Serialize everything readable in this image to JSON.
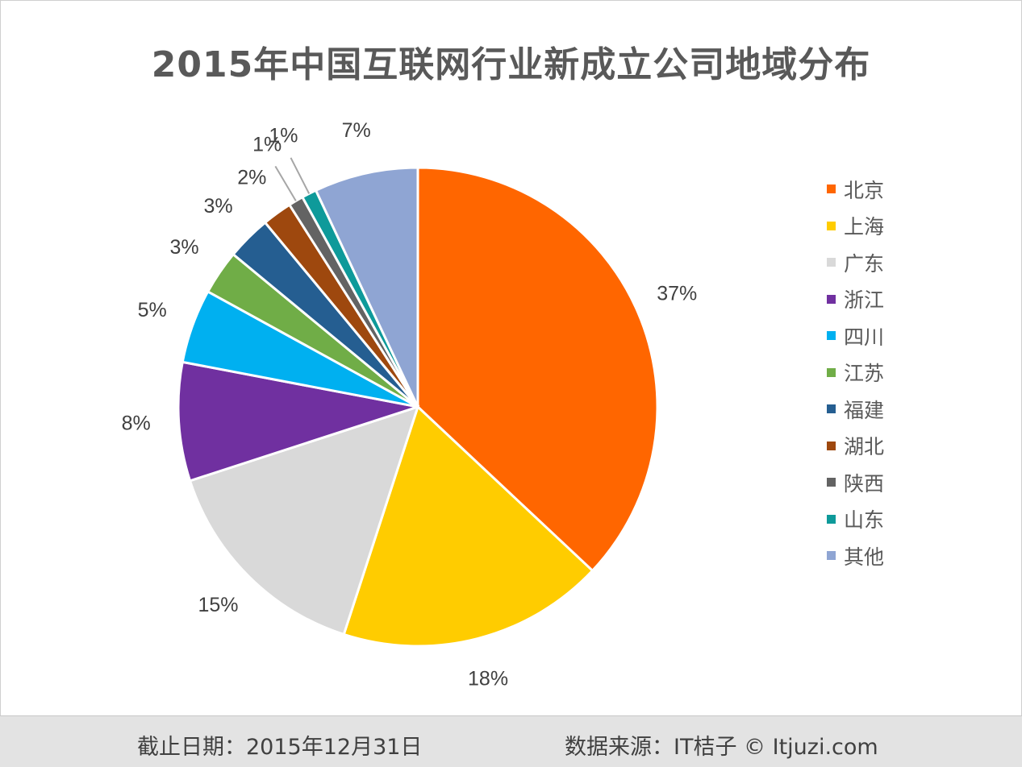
{
  "chart_data": {
    "type": "pie",
    "title": "2015年中国互联网行业新成立公司地域分布",
    "categories": [
      "北京",
      "上海",
      "广东",
      "浙江",
      "四川",
      "江苏",
      "福建",
      "湖北",
      "陕西",
      "山东",
      "其他"
    ],
    "values": [
      37,
      18,
      15,
      8,
      5,
      3,
      3,
      2,
      1,
      1,
      7
    ],
    "data_labels": [
      "37%",
      "18%",
      "15%",
      "8%",
      "5%",
      "3%",
      "3%",
      "2%",
      "1%",
      "1%",
      "7%"
    ],
    "colors": [
      "#FF6600",
      "#FFCC00",
      "#D9D9D9",
      "#7030A0",
      "#00B0F0",
      "#70AD47",
      "#255E91",
      "#9E480E",
      "#636363",
      "#0E9A9A",
      "#8FA5D3"
    ],
    "start_angle": "12 o'clock",
    "direction": "clockwise",
    "legend_position": "right"
  },
  "footer": {
    "date": "截止日期：2015年12月31日",
    "source": "数据来源：IT桔子 © Itjuzi.com"
  }
}
